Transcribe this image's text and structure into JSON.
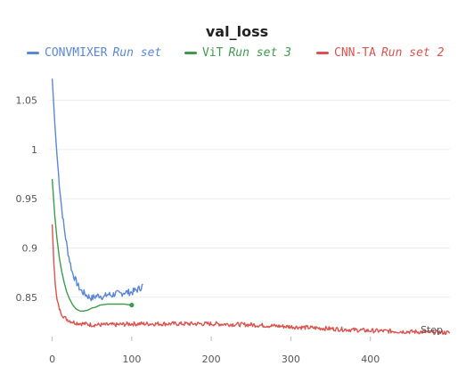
{
  "chart_data": {
    "type": "line",
    "title": "val_loss",
    "xlabel": "Step",
    "ylabel": "",
    "xlim": [
      -4,
      500
    ],
    "ylim": [
      0.81,
      1.075
    ],
    "x_ticks": [
      0,
      100,
      200,
      300,
      400
    ],
    "y_ticks": [
      0.85,
      0.9,
      0.95,
      1,
      1.05
    ],
    "y_tick_labels": [
      "0.85",
      "0.9",
      "0.95",
      "1",
      "1.05"
    ],
    "grid": true,
    "legend": "top",
    "series": [
      {
        "name": "CONVMIXER",
        "run": "Run set",
        "color": "#5b87d6",
        "noisy": true,
        "x": [
          0,
          3,
          6,
          9,
          12,
          15,
          20,
          25,
          30,
          35,
          40,
          45,
          50,
          55,
          60,
          65,
          70,
          75,
          80,
          85,
          90,
          95,
          100,
          105,
          110,
          114
        ],
        "y": [
          1.072,
          1.03,
          0.995,
          0.965,
          0.94,
          0.92,
          0.895,
          0.876,
          0.866,
          0.858,
          0.854,
          0.851,
          0.849,
          0.851,
          0.852,
          0.85,
          0.853,
          0.852,
          0.854,
          0.853,
          0.855,
          0.855,
          0.855,
          0.857,
          0.859,
          0.862
        ]
      },
      {
        "name": "ViT",
        "run": "Run set 3",
        "color": "#3f9a4f",
        "noisy": false,
        "x": [
          0,
          3,
          6,
          9,
          12,
          15,
          18,
          22,
          26,
          30,
          35,
          40,
          45,
          50,
          55,
          60,
          70,
          80,
          90,
          100
        ],
        "y": [
          0.97,
          0.935,
          0.91,
          0.89,
          0.876,
          0.865,
          0.856,
          0.848,
          0.842,
          0.838,
          0.836,
          0.836,
          0.837,
          0.839,
          0.84,
          0.842,
          0.843,
          0.843,
          0.843,
          0.842
        ]
      },
      {
        "name": "CNN-TA",
        "run": "Run set 2",
        "color": "#d9534f",
        "noisy": true,
        "x": [
          0,
          2,
          4,
          6,
          8,
          10,
          13,
          16,
          20,
          25,
          30,
          40,
          50,
          60,
          80,
          100,
          150,
          200,
          250,
          300,
          350,
          400,
          450,
          500
        ],
        "y": [
          0.924,
          0.885,
          0.862,
          0.848,
          0.841,
          0.836,
          0.832,
          0.829,
          0.827,
          0.825,
          0.824,
          0.823,
          0.822,
          0.822,
          0.822,
          0.823,
          0.823,
          0.823,
          0.822,
          0.82,
          0.818,
          0.816,
          0.815,
          0.814
        ]
      }
    ]
  }
}
